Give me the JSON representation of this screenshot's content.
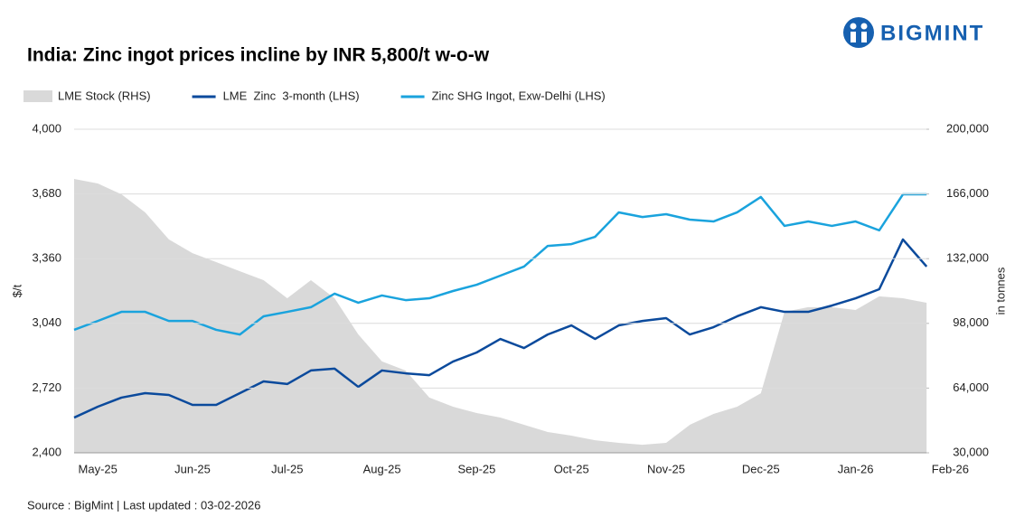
{
  "brand": "BIGMINT",
  "chart_data": {
    "type": "line",
    "title": "India: Zinc ingot prices incline by INR 5,800/t w-o-w",
    "source": "Source : BigMint | Last updated : 03-02-2026",
    "ylabel": "$/t",
    "y2label": "in tonnes",
    "categories": [
      null,
      "May-25",
      null,
      null,
      null,
      "Jun-25",
      null,
      null,
      null,
      "Jul-25",
      null,
      null,
      null,
      "Aug-25",
      null,
      null,
      null,
      "Sep-25",
      null,
      null,
      null,
      "Oct-25",
      null,
      null,
      null,
      "Nov-25",
      null,
      null,
      null,
      "Dec-25",
      null,
      null,
      null,
      "Jan-26",
      null,
      null,
      null,
      "Feb-26"
    ],
    "series": [
      {
        "name": "LME Stock (RHS)",
        "color": "#d9d9d9",
        "style": "area",
        "axis": "y2",
        "values": [
          173900,
          171500,
          165800,
          156300,
          142100,
          134900,
          130200,
          125400,
          120700,
          111200,
          120700,
          111200,
          92200,
          78000,
          73200,
          59000,
          54200,
          50900,
          48500,
          44700,
          40900,
          39000,
          36600,
          35200,
          34200,
          35200,
          44700,
          50400,
          54200,
          61300,
          104100,
          106500,
          106500,
          105000,
          112200,
          111200,
          108800,
          null
        ]
      },
      {
        "name": "LME  Zinc  3-month (LHS)",
        "color": "#0b4a9c",
        "style": "line",
        "values": [
          2574,
          2628,
          2673,
          2695,
          2686,
          2637,
          2637,
          2695,
          2753,
          2740,
          2807,
          2816,
          2726,
          2807,
          2793,
          2784,
          2851,
          2896,
          2963,
          2918,
          2985,
          3030,
          2963,
          3030,
          3052,
          3066,
          2985,
          3021,
          3075,
          3120,
          3097,
          3097,
          3128,
          3164,
          3209,
          3455,
          3321,
          null
        ]
      },
      {
        "name": "Zinc SHG Ingot, Exw-Delhi (LHS)",
        "color": "#1aa3dd",
        "style": "line",
        "values": [
          3008,
          3052,
          3097,
          3097,
          3052,
          3052,
          3008,
          2985,
          3075,
          3097,
          3120,
          3187,
          3142,
          3178,
          3155,
          3164,
          3200,
          3231,
          3276,
          3321,
          3423,
          3432,
          3468,
          3589,
          3566,
          3580,
          3553,
          3544,
          3589,
          3665,
          3522,
          3544,
          3522,
          3544,
          3500,
          3678,
          3678,
          null
        ]
      }
    ],
    "ylim": [
      2400,
      4000
    ],
    "yticks": [
      {
        "value": 2400,
        "label": "2,400"
      },
      {
        "value": 2720,
        "label": "2,720"
      },
      {
        "value": 3040,
        "label": "3,040"
      },
      {
        "value": 3360,
        "label": "3,360"
      },
      {
        "value": 3680,
        "label": "3,680"
      },
      {
        "value": 4000,
        "label": "4,000"
      }
    ],
    "y2lim": [
      30000,
      200000
    ],
    "y2ticks": [
      {
        "value": 30000,
        "label": "30,000"
      },
      {
        "value": 64000,
        "label": "64,000"
      },
      {
        "value": 98000,
        "label": "98,000"
      },
      {
        "value": 132000,
        "label": "132,000"
      },
      {
        "value": 166000,
        "label": "166,000"
      },
      {
        "value": 200000,
        "label": "200,000"
      }
    ],
    "grid": true
  }
}
